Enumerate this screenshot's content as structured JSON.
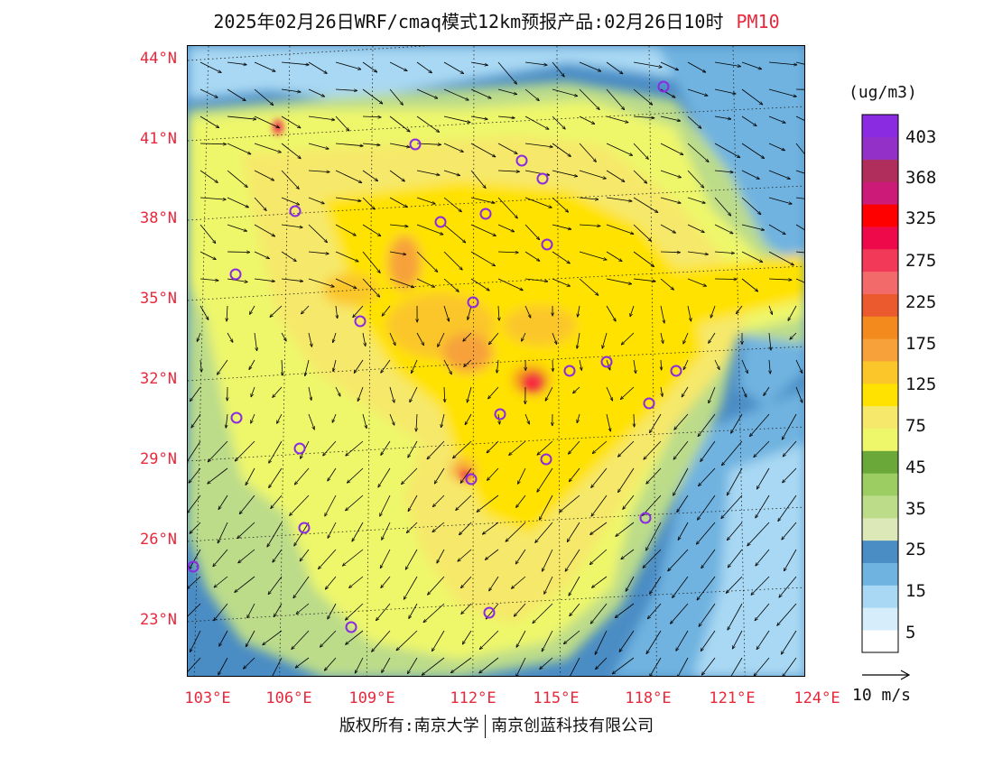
{
  "title": {
    "main": "2025年02月26日WRF/cmaq模式12km预报产品:02月26日10时",
    "variable": "PM10"
  },
  "map": {
    "latitude_labels": [
      "44°N",
      "41°N",
      "38°N",
      "35°N",
      "32°N",
      "29°N",
      "26°N",
      "23°N"
    ],
    "longitude_labels": [
      "103°E",
      "106°E",
      "109°E",
      "112°E",
      "115°E",
      "118°E",
      "121°E",
      "124°E"
    ]
  },
  "colorbar": {
    "units": "(ug/m3)",
    "labels": [
      "403",
      "368",
      "325",
      "275",
      "225",
      "175",
      "125",
      "75",
      "45",
      "35",
      "25",
      "15",
      "5"
    ],
    "colors": [
      "#ffffff",
      "#d6eefb",
      "#a8d8f3",
      "#6fb3e0",
      "#4a8cc4",
      "#dce8b8",
      "#bcdc8a",
      "#9ccd62",
      "#6aa83a",
      "#eef76a",
      "#f6e86a",
      "#ffe200",
      "#fbc62a",
      "#f7a13a",
      "#f38a1e",
      "#ea5a2e",
      "#f26a6a",
      "#f23a58",
      "#ee0a4a",
      "#ff0000",
      "#cc1a78",
      "#b02e5c",
      "#9230c8",
      "#8a2be2"
    ]
  },
  "wind_reference": {
    "label": "10 m/s"
  },
  "footer": {
    "copyright_left": "版权所有:南京大学",
    "copyright_right": "南京创蓝科技有限公司"
  }
}
